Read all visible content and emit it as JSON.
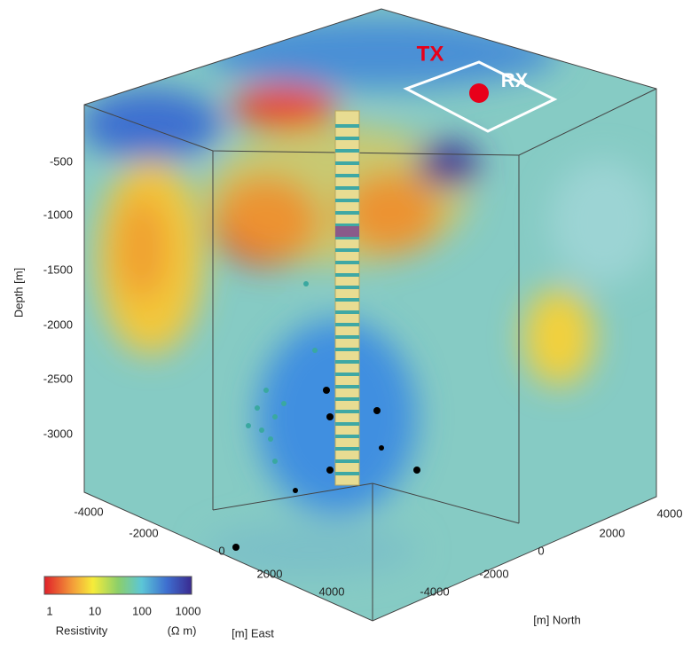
{
  "depth_axis": {
    "label": "Depth [m]",
    "ticks": [
      -500,
      -1000,
      -1500,
      -2000,
      -2500,
      -3000
    ]
  },
  "east_axis": {
    "label": "[m] East",
    "ticks": [
      -4000,
      -2000,
      0,
      2000,
      4000
    ]
  },
  "north_axis": {
    "label": "[m] North",
    "ticks": [
      -4000,
      -2000,
      0,
      2000,
      4000
    ]
  },
  "colorbar": {
    "label": "Resistivity",
    "unit": "(Ω m)",
    "ticks": [
      1,
      10,
      100,
      1000
    ]
  },
  "annotations": {
    "tx": "TX",
    "rx": "RX"
  }
}
